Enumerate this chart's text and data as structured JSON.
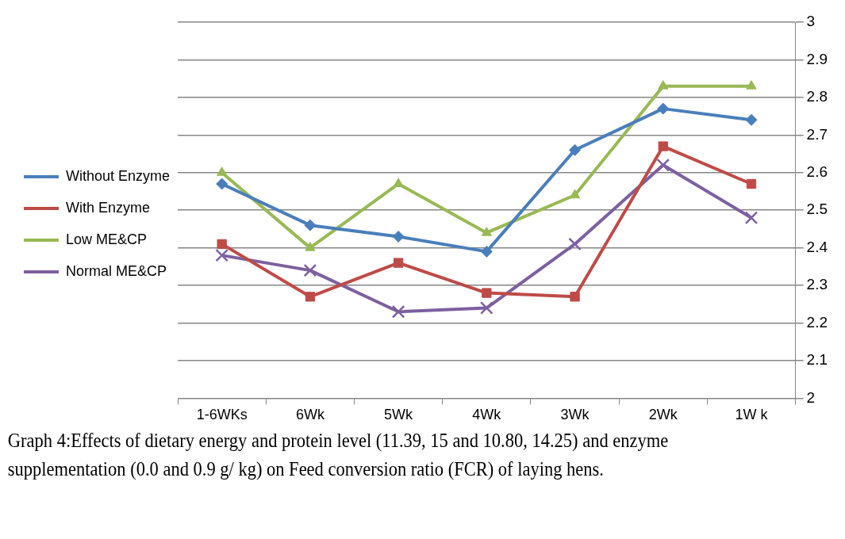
{
  "chart_data": {
    "type": "line",
    "categories": [
      "1-6WKs",
      "6Wk",
      "5Wk",
      "4Wk",
      "3Wk",
      "2Wk",
      "1W k"
    ],
    "series": [
      {
        "name": "Without Enzyme",
        "color": "#4a7ebb",
        "marker": "diamond",
        "values": [
          2.57,
          2.46,
          2.43,
          2.39,
          2.66,
          2.77,
          2.74
        ]
      },
      {
        "name": "With Enzyme",
        "color": "#be4b48",
        "marker": "square",
        "values": [
          2.41,
          2.27,
          2.36,
          2.28,
          2.27,
          2.67,
          2.57
        ]
      },
      {
        "name": "Low ME&CP",
        "color": "#98b954",
        "marker": "triangle",
        "values": [
          2.6,
          2.4,
          2.57,
          2.44,
          2.54,
          2.83,
          2.83
        ]
      },
      {
        "name": "Normal ME&CP",
        "color": "#7d60a0",
        "marker": "cross",
        "values": [
          2.38,
          2.34,
          2.23,
          2.24,
          2.41,
          2.62,
          2.48
        ]
      }
    ],
    "ylim": [
      2,
      3
    ],
    "yticks": [
      2,
      2.1,
      2.2,
      2.3,
      2.4,
      2.5,
      2.6,
      2.7,
      2.8,
      2.9,
      3
    ],
    "grid": "y",
    "legend": "left",
    "line_style": "solid",
    "annotations": [
      "Graph 4:Effects of dietary energy and protein level (11.39, 15 and 10.80, 14.25) and enzyme supplementation (0.0 and 0.9 g/ kg) on Feed conversion ratio (FCR) of laying hens."
    ]
  }
}
